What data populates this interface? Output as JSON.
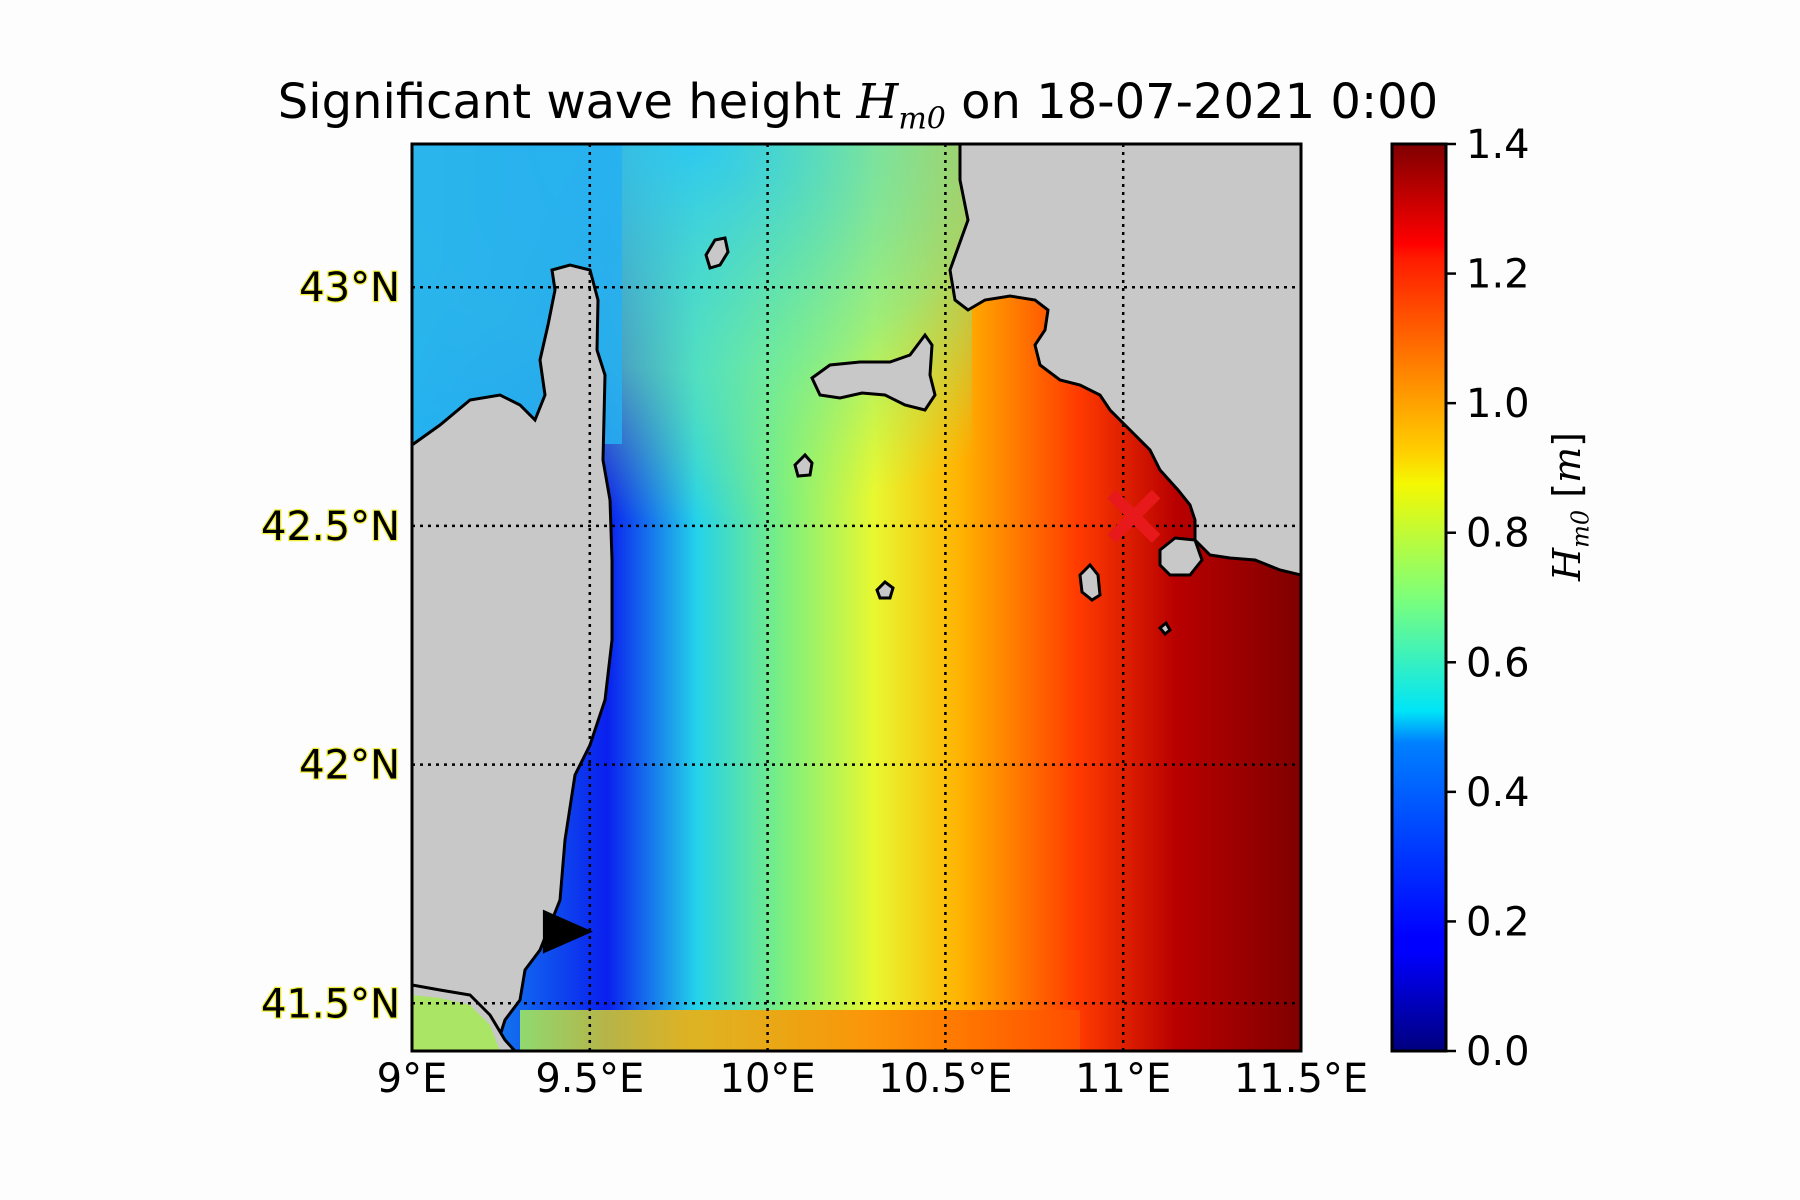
{
  "title": {
    "prefix": "Significant wave height ",
    "symbol": "H",
    "subscript": "m0",
    "suffix": " on 18-07-2021 0:00"
  },
  "map": {
    "lon_range": [
      9.0,
      11.5
    ],
    "lat_range": [
      41.4,
      43.3
    ],
    "lon_ticks": [
      {
        "value": 9.0,
        "label": "9°E"
      },
      {
        "value": 9.5,
        "label": "9.5°E"
      },
      {
        "value": 10.0,
        "label": "10°E"
      },
      {
        "value": 10.5,
        "label": "10.5°E"
      },
      {
        "value": 11.0,
        "label": "11°E"
      },
      {
        "value": 11.5,
        "label": "11.5°E"
      }
    ],
    "lat_ticks": [
      {
        "value": 43.0,
        "label": "43°N"
      },
      {
        "value": 42.5,
        "label": "42.5°N"
      },
      {
        "value": 42.0,
        "label": "42°N"
      },
      {
        "value": 41.5,
        "label": "41.5°N"
      }
    ],
    "grid": "dotted",
    "land_color": "#c8c8c8",
    "markers": [
      {
        "type": "cross",
        "color": "#e8191a",
        "lon": 11.03,
        "lat": 42.52
      },
      {
        "type": "triangle-right",
        "color": "#000000",
        "lon": 9.43,
        "lat": 41.65
      }
    ]
  },
  "colorbar": {
    "min": 0.0,
    "max": 1.4,
    "colormap": "jet",
    "ticks": [
      {
        "value": 0.0,
        "label": "0.0"
      },
      {
        "value": 0.2,
        "label": "0.2"
      },
      {
        "value": 0.4,
        "label": "0.4"
      },
      {
        "value": 0.6,
        "label": "0.6"
      },
      {
        "value": 0.8,
        "label": "0.8"
      },
      {
        "value": 1.0,
        "label": "1.0"
      },
      {
        "value": 1.2,
        "label": "1.2"
      },
      {
        "value": 1.4,
        "label": "1.4"
      }
    ],
    "label_symbol": "H",
    "label_subscript": "m0",
    "label_unit": "m"
  }
}
